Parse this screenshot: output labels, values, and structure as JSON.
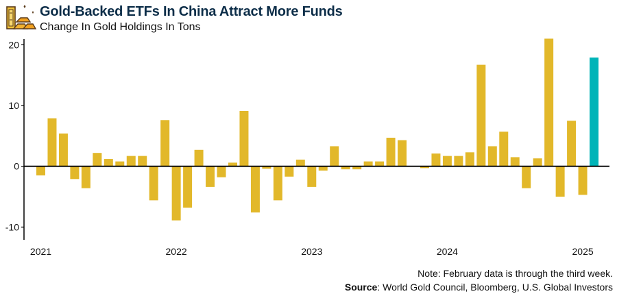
{
  "header": {
    "title": "Gold-Backed ETFs In China Attract More Funds",
    "subtitle": "Change In Gold Holdings In Tons",
    "logo_icon": "gold-bars-icon"
  },
  "footer": {
    "note": "Note: February data is through the third week.",
    "source_label": "Source",
    "source_text": ": World Gold Council, Bloomberg, U.S. Global Investors"
  },
  "colors": {
    "bar": "#E2B82A",
    "highlight": "#00B4B8",
    "title": "#0C2D48",
    "axis": "#000000"
  },
  "chart_data": {
    "type": "bar",
    "title": "Gold-Backed ETFs In China Attract More Funds",
    "subtitle": "Change In Gold Holdings In Tons",
    "xlabel": "",
    "ylabel": "",
    "ylim": [
      -12,
      21
    ],
    "yticks": [
      20,
      10,
      0,
      -10
    ],
    "ytick_labels": [
      "20",
      "10",
      "0",
      "-10"
    ],
    "xtick_labels": [
      "2021",
      "2022",
      "2023",
      "2024",
      "2025"
    ],
    "grid": false,
    "legend": "none",
    "highlight_index": 49,
    "categories": [
      "Jan 2021",
      "Feb 2021",
      "Mar 2021",
      "Apr 2021",
      "May 2021",
      "Jun 2021",
      "Jul 2021",
      "Aug 2021",
      "Sep 2021",
      "Oct 2021",
      "Nov 2021",
      "Dec 2021",
      "Jan 2022",
      "Feb 2022",
      "Mar 2022",
      "Apr 2022",
      "May 2022",
      "Jun 2022",
      "Jul 2022",
      "Aug 2022",
      "Sep 2022",
      "Oct 2022",
      "Nov 2022",
      "Dec 2022",
      "Jan 2023",
      "Feb 2023",
      "Mar 2023",
      "Apr 2023",
      "May 2023",
      "Jun 2023",
      "Jul 2023",
      "Aug 2023",
      "Sep 2023",
      "Oct 2023",
      "Nov 2023",
      "Dec 2023",
      "Jan 2024",
      "Feb 2024",
      "Mar 2024",
      "Apr 2024",
      "May 2024",
      "Jun 2024",
      "Jul 2024",
      "Aug 2024",
      "Sep 2024",
      "Oct 2024",
      "Nov 2024",
      "Dec 2024",
      "Jan 2025",
      "Feb 2025"
    ],
    "values": [
      -1.5,
      7.9,
      5.4,
      -2.1,
      -3.6,
      2.2,
      1.2,
      0.8,
      1.7,
      1.7,
      -5.6,
      7.6,
      -8.9,
      -6.8,
      2.7,
      -3.4,
      -1.8,
      0.6,
      9.1,
      -7.6,
      -0.4,
      -5.6,
      -1.7,
      1.1,
      -3.4,
      -0.7,
      3.3,
      -0.5,
      -0.5,
      0.8,
      0.8,
      4.7,
      4.3,
      0.0,
      -0.3,
      2.1,
      1.7,
      1.7,
      2.3,
      16.7,
      3.3,
      5.7,
      1.5,
      -3.6,
      1.3,
      21.0,
      -5.0,
      7.5,
      -4.7,
      17.9
    ]
  }
}
